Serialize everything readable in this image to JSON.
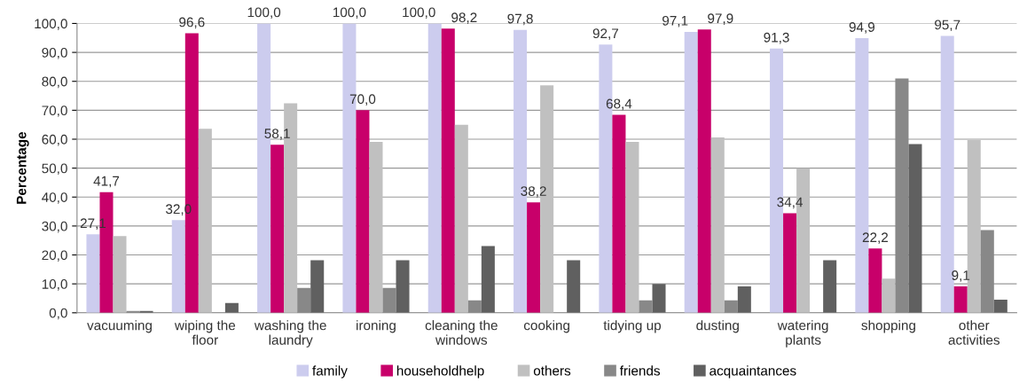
{
  "chart_data": {
    "type": "bar",
    "ylabel": "Percentage",
    "categories": [
      "vacuuming",
      "wiping the\nfloor",
      "washing the\nlaundry",
      "ironing",
      "cleaning the\nwindows",
      "cooking",
      "tidying up",
      "dusting",
      "watering\nplants",
      "shopping",
      "other\nactivities"
    ],
    "series": [
      {
        "name": "family",
        "color": "#ccccee",
        "values": [
          27.1,
          32.0,
          100.0,
          100.0,
          100.0,
          97.8,
          92.7,
          97.1,
          91.3,
          94.9,
          95.7
        ],
        "value_labels": [
          "27,1",
          "32,0",
          "100,0",
          "100,0",
          "100,0",
          "97,8",
          "92,7",
          "97,1",
          "91,3",
          "94,9",
          "95,7"
        ]
      },
      {
        "name": "householdhelp",
        "color": "#c8006a",
        "values": [
          41.7,
          96.6,
          58.1,
          70.0,
          98.2,
          38.2,
          68.4,
          97.9,
          34.4,
          22.2,
          9.1
        ],
        "value_labels": [
          "41,7",
          "96,6",
          "58,1",
          "70,0",
          "98,2",
          "38,2",
          "68,4",
          "97,9",
          "34,4",
          "22,2",
          "9,1"
        ]
      },
      {
        "name": "others",
        "color": "#c0c0c0",
        "values": [
          26.5,
          63.6,
          72.4,
          59.1,
          65.0,
          78.6,
          59.1,
          60.6,
          50.0,
          11.8,
          59.7
        ]
      },
      {
        "name": "friends",
        "color": "#888888",
        "values": [
          0.6,
          0,
          8.6,
          8.6,
          4.3,
          0,
          4.3,
          4.3,
          0,
          81.0,
          28.6
        ]
      },
      {
        "name": "acquaintances",
        "color": "#606060",
        "values": [
          0.6,
          3.4,
          18.2,
          18.2,
          23.1,
          18.2,
          10.0,
          9.1,
          18.2,
          58.3,
          4.5
        ]
      }
    ],
    "ylim": [
      0,
      100
    ],
    "yticks": [
      {
        "value": 0,
        "label": "0,0"
      },
      {
        "value": 10,
        "label": "10,0"
      },
      {
        "value": 20,
        "label": "20,0"
      },
      {
        "value": 30,
        "label": "30,0"
      },
      {
        "value": 40,
        "label": "40,0"
      },
      {
        "value": 50,
        "label": "50,0"
      },
      {
        "value": 60,
        "label": "60,0"
      },
      {
        "value": 70,
        "label": "70,0"
      },
      {
        "value": 80,
        "label": "80,0"
      },
      {
        "value": 90,
        "label": "90,0"
      },
      {
        "value": 100,
        "label": "100,0"
      }
    ],
    "grid": "y",
    "legend": "bottom"
  }
}
